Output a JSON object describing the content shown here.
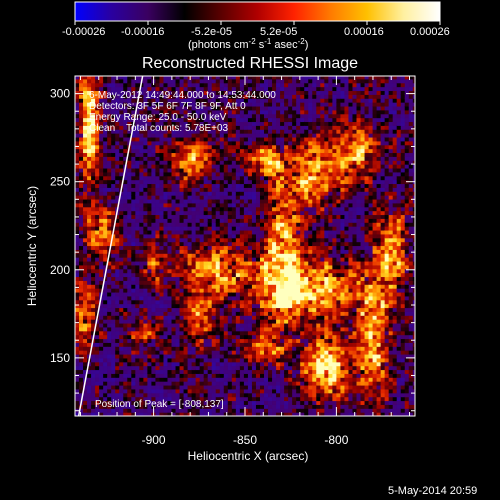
{
  "colorbar": {
    "ticks": [
      "-0.00026",
      "-0.00016",
      "-5.2e-05",
      "5.2e-05",
      "0.00016",
      "0.00026"
    ],
    "label": "(photons cm",
    "label_exp1": "-2",
    "label_mid": " s",
    "label_exp2": "-1",
    "label_end": " asec",
    "label_exp3": "-2",
    "label_close": ")",
    "range": [
      -0.00026,
      0.00026
    ],
    "gradient": [
      "#0000ff",
      "#2a00a0",
      "#3a0060",
      "#000000",
      "#5a0000",
      "#b00000",
      "#ff2200",
      "#ff7a00",
      "#ffc000",
      "#fff0a0",
      "#ffffff"
    ]
  },
  "title": "Reconstructed RHESSI Image",
  "info": {
    "line1": "6-May-2012 14:49:44.000 to 14:53:44.000",
    "line2": "Detectors: 3F 5F 6F 7F 8F 9F, Att 0",
    "line3": "Energy Range: 25.0 - 50.0 keV",
    "line4": "Clean    Total counts: 5.78E+03"
  },
  "peak_text": "Position of Peak = [-808,137]",
  "footer_date": "5-May-2014 20:59",
  "chart_data": {
    "type": "heatmap",
    "title": "Reconstructed RHESSI Image",
    "xlabel": "Heliocentric X (arcsec)",
    "ylabel": "Heliocentric Y (arcsec)",
    "xlim": [
      -943,
      -757
    ],
    "ylim": [
      117,
      310
    ],
    "xticks": [
      -900,
      -850,
      -800
    ],
    "xticklabels": [
      "-900",
      "-850",
      "-800"
    ],
    "yticks": [
      150,
      200,
      250,
      300
    ],
    "yticklabels": [
      "150",
      "200",
      "250",
      "300"
    ],
    "peak": [
      -808,
      137
    ],
    "limb_line": [
      [
        -941,
        117
      ],
      [
        -906,
        310
      ]
    ],
    "sources": [
      {
        "x": -805,
        "y": 145,
        "sx": 9,
        "sy": 11,
        "a": 1.0
      },
      {
        "x": -780,
        "y": 162,
        "sx": 6,
        "sy": 22,
        "a": 0.85
      },
      {
        "x": -770,
        "y": 210,
        "sx": 6,
        "sy": 16,
        "a": 0.8
      },
      {
        "x": -815,
        "y": 190,
        "sx": 18,
        "sy": 12,
        "a": 0.85
      },
      {
        "x": -830,
        "y": 210,
        "sx": 7,
        "sy": 26,
        "a": 0.8
      },
      {
        "x": -812,
        "y": 255,
        "sx": 10,
        "sy": 13,
        "a": 0.75
      },
      {
        "x": -838,
        "y": 262,
        "sx": 7,
        "sy": 6,
        "a": 0.7
      },
      {
        "x": -790,
        "y": 268,
        "sx": 8,
        "sy": 10,
        "a": 0.7
      },
      {
        "x": -880,
        "y": 262,
        "sx": 7,
        "sy": 8,
        "a": 0.8
      },
      {
        "x": -866,
        "y": 200,
        "sx": 14,
        "sy": 10,
        "a": 0.7
      },
      {
        "x": -875,
        "y": 172,
        "sx": 6,
        "sy": 9,
        "a": 0.6
      },
      {
        "x": -935,
        "y": 285,
        "sx": 4,
        "sy": 25,
        "a": 0.85
      },
      {
        "x": -928,
        "y": 220,
        "sx": 6,
        "sy": 10,
        "a": 0.65
      },
      {
        "x": -938,
        "y": 175,
        "sx": 5,
        "sy": 12,
        "a": 0.6
      },
      {
        "x": -840,
        "y": 155,
        "sx": 8,
        "sy": 6,
        "a": 0.55
      },
      {
        "x": -900,
        "y": 205,
        "sx": 4,
        "sy": 8,
        "a": 0.5
      },
      {
        "x": -905,
        "y": 165,
        "sx": 7,
        "sy": 6,
        "a": 0.45
      }
    ]
  }
}
